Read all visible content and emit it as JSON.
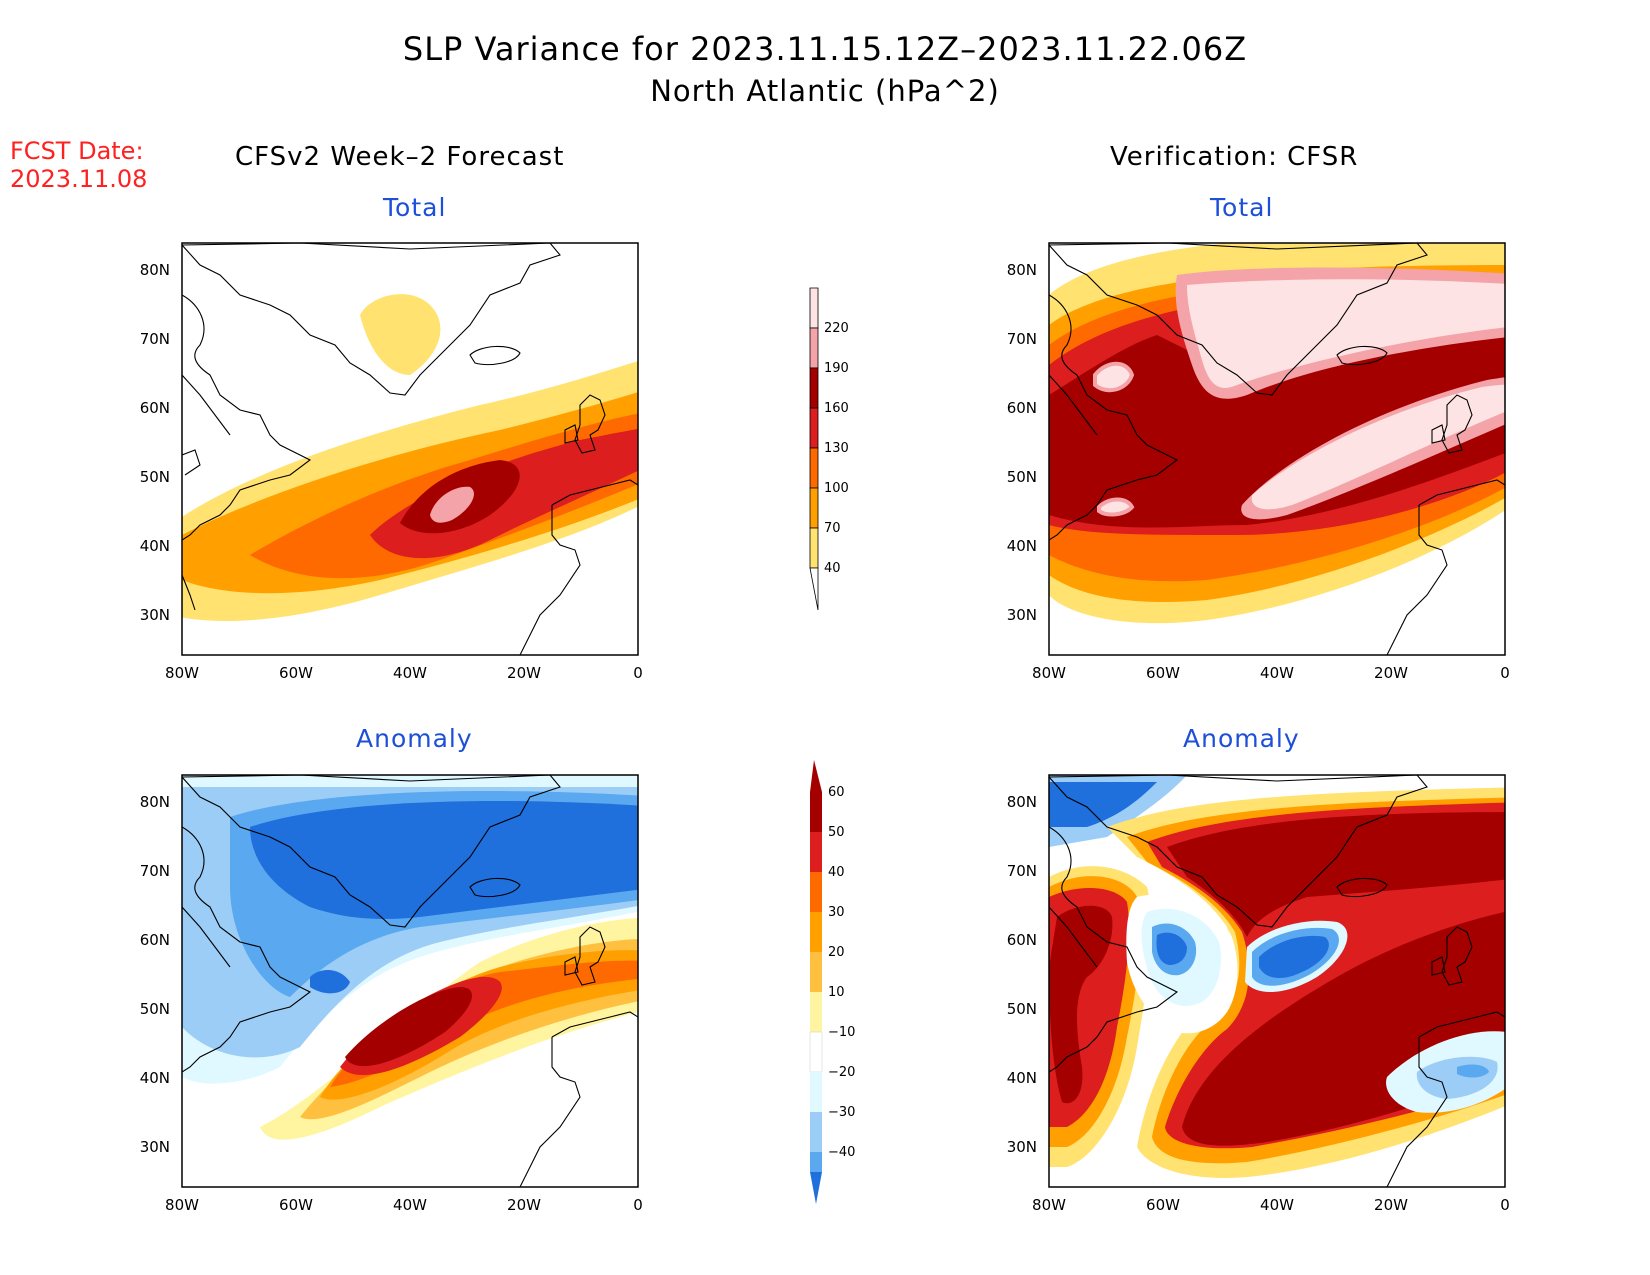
{
  "header": {
    "title_line1": "SLP Variance for 2023.11.15.12Z–2023.11.22.06Z",
    "title_line2": "North Atlantic (hPa^2)",
    "fcst_label": "FCST Date:",
    "fcst_date": "2023.11.08"
  },
  "columns": {
    "left_title": "CFSv2 Week–2 Forecast",
    "right_title": "Verification: CFSR"
  },
  "panels": {
    "top_left_label": "Total",
    "top_right_label": "Total",
    "bottom_left_label": "Anomaly",
    "bottom_right_label": "Anomaly"
  },
  "axes": {
    "lat_labels": [
      "80N",
      "70N",
      "60N",
      "50N",
      "40N",
      "30N"
    ],
    "lon_labels": [
      "80W",
      "60W",
      "40W",
      "20W",
      "0"
    ]
  },
  "total_colorbar": {
    "levels": [
      "220",
      "190",
      "160",
      "130",
      "100",
      "70",
      "40"
    ],
    "colors": [
      "#fde3e3",
      "#f4a3a8",
      "#a50000",
      "#dc1e1e",
      "#ff6a00",
      "#ffa000",
      "#ffe270"
    ]
  },
  "anomaly_colorbar": {
    "levels": [
      "60",
      "50",
      "40",
      "30",
      "20",
      "10",
      "−10",
      "−20",
      "−30",
      "−40"
    ],
    "colors": [
      "#a50000",
      "#dc1e1e",
      "#ff6a00",
      "#ffa000",
      "#ffc040",
      "#fff5a0",
      "#ffffff",
      "#e0f8ff",
      "#9ccdf6",
      "#5aa8f0",
      "#1f6fdc"
    ]
  }
}
